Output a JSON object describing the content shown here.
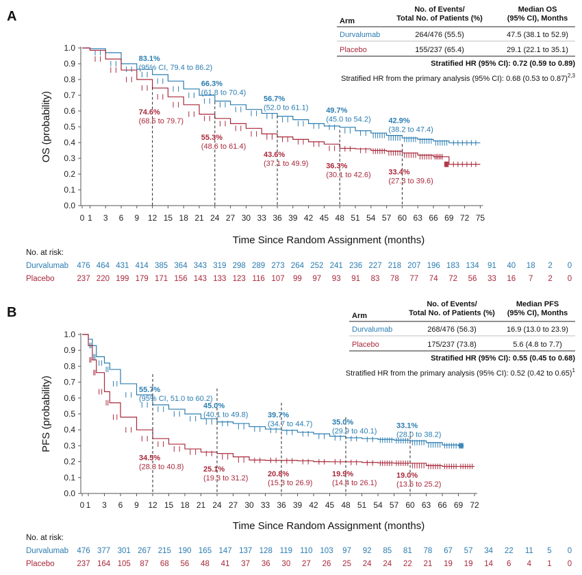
{
  "colors": {
    "durvalumab": "#2a7cb0",
    "placebo": "#a8283a",
    "text": "#111111"
  },
  "chart_data": [
    {
      "type": "line",
      "panel_label": "A",
      "ylabel": "OS (probability)",
      "xlabel": "Time Since Random Assignment (months)",
      "xlim": [
        0,
        75
      ],
      "ylim": [
        0,
        1.0
      ],
      "x_ticks": [
        "0",
        "1",
        "3",
        "6",
        "9",
        "12",
        "15",
        "18",
        "21",
        "24",
        "27",
        "30",
        "33",
        "36",
        "39",
        "42",
        "45",
        "48",
        "51",
        "54",
        "57",
        "60",
        "63",
        "66",
        "69",
        "72",
        "75"
      ],
      "x_tick_values": [
        0,
        1,
        3,
        6,
        9,
        12,
        15,
        18,
        21,
        24,
        27,
        30,
        33,
        36,
        39,
        42,
        45,
        48,
        51,
        54,
        57,
        60,
        63,
        66,
        69,
        72,
        75
      ],
      "y_ticks": [
        "0.0",
        "0.1",
        "0.2",
        "0.3",
        "0.4",
        "0.5",
        "0.6",
        "0.7",
        "0.8",
        "0.9",
        "1.0"
      ],
      "series": [
        {
          "name": "Durvalumab",
          "color": "#2a7cb0",
          "x": [
            0,
            1,
            3,
            6,
            9,
            12,
            15,
            18,
            21,
            24,
            27,
            30,
            33,
            36,
            39,
            42,
            45,
            48,
            51,
            54,
            57,
            60,
            63,
            66,
            69,
            75
          ],
          "values": [
            1.0,
            0.995,
            0.97,
            0.9,
            0.865,
            0.831,
            0.79,
            0.74,
            0.7,
            0.663,
            0.64,
            0.61,
            0.585,
            0.567,
            0.545,
            0.52,
            0.505,
            0.497,
            0.475,
            0.46,
            0.445,
            0.429,
            0.42,
            0.41,
            0.398,
            0.398
          ]
        },
        {
          "name": "Placebo",
          "color": "#a8283a",
          "x": [
            0,
            1,
            3,
            6,
            9,
            12,
            15,
            18,
            21,
            24,
            27,
            30,
            33,
            36,
            39,
            42,
            45,
            48,
            51,
            54,
            57,
            60,
            63,
            66,
            68,
            69,
            75
          ],
          "values": [
            1.0,
            0.985,
            0.93,
            0.86,
            0.8,
            0.746,
            0.69,
            0.64,
            0.58,
            0.553,
            0.52,
            0.49,
            0.455,
            0.436,
            0.42,
            0.405,
            0.39,
            0.363,
            0.36,
            0.35,
            0.345,
            0.334,
            0.32,
            0.31,
            0.31,
            0.262,
            0.262
          ]
        }
      ],
      "annotations": [
        {
          "series": "Durvalumab",
          "month": 12,
          "pct": "83.1%",
          "ci": "(95% CI, 79.4 to 86.2)",
          "anchor_y": 0.84,
          "pos": "above"
        },
        {
          "series": "Durvalumab",
          "month": 24,
          "pct": "66.3%",
          "ci": "(61.8 to 70.4)",
          "anchor_y": 0.68,
          "pos": "above"
        },
        {
          "series": "Durvalumab",
          "month": 36,
          "pct": "56.7%",
          "ci": "(52.0 to 61.1)",
          "anchor_y": 0.585,
          "pos": "above"
        },
        {
          "series": "Durvalumab",
          "month": 48,
          "pct": "49.7%",
          "ci": "(45.0 to 54.2)",
          "anchor_y": 0.51,
          "pos": "above"
        },
        {
          "series": "Durvalumab",
          "month": 60,
          "pct": "42.9%",
          "ci": "(38.2 to 47.4)",
          "anchor_y": 0.445,
          "pos": "above"
        },
        {
          "series": "Placebo",
          "month": 12,
          "pct": "74.6%",
          "ci": "(68.5 to 79.7)",
          "anchor_y": 0.63,
          "pos": "below"
        },
        {
          "series": "Placebo",
          "month": 24,
          "pct": "55.3%",
          "ci": "(48.6 to 61.4)",
          "anchor_y": 0.47,
          "pos": "below"
        },
        {
          "series": "Placebo",
          "month": 36,
          "pct": "43.6%",
          "ci": "(37.1 to 49.9)",
          "anchor_y": 0.36,
          "pos": "below"
        },
        {
          "series": "Placebo",
          "month": 48,
          "pct": "36.3%",
          "ci": "(30.1 to 42.6)",
          "anchor_y": 0.29,
          "pos": "below"
        },
        {
          "series": "Placebo",
          "month": 60,
          "pct": "33.4%",
          "ci": "(27.3 to 39.6)",
          "anchor_y": 0.25,
          "pos": "below"
        }
      ],
      "legend_table": {
        "headers": {
          "arm": "Arm",
          "events_line1": "No. of Events/",
          "events_line2": "Total No. of Patients (%)",
          "median_line1": "Median OS",
          "median_line2": "(95% CI), Months"
        },
        "rows": [
          {
            "arm": "Durvalumab",
            "events": "264/476 (55.5)",
            "median": "47.5 (38.1 to 52.9)"
          },
          {
            "arm": "Placebo",
            "events": "155/237 (65.4)",
            "median": "29.1 (22.1 to 35.1)"
          }
        ],
        "hr_text": "Stratified HR (95% CI): 0.72 (0.59 to 0.89)",
        "primary_text": "Stratified HR from the primary analysis (95% CI): 0.68 (0.53 to 0.87)",
        "primary_sup": "2,3"
      },
      "at_risk": {
        "title": "No. at risk:",
        "rows": [
          {
            "arm": "Durvalumab",
            "values": [
              "476",
              "464",
              "431",
              "414",
              "385",
              "364",
              "343",
              "319",
              "298",
              "289",
              "273",
              "264",
              "252",
              "241",
              "236",
              "227",
              "218",
              "207",
              "196",
              "183",
              "134",
              "91",
              "40",
              "18",
              "2",
              "0"
            ]
          },
          {
            "arm": "Placebo",
            "values": [
              "237",
              "220",
              "199",
              "179",
              "171",
              "156",
              "143",
              "133",
              "123",
              "116",
              "107",
              "99",
              "97",
              "93",
              "91",
              "83",
              "78",
              "77",
              "74",
              "72",
              "56",
              "33",
              "16",
              "7",
              "2",
              "0"
            ]
          }
        ]
      }
    },
    {
      "type": "line",
      "panel_label": "B",
      "ylabel": "PFS (probability)",
      "xlabel": "Time Since Random Assignment (months)",
      "xlim": [
        0,
        72
      ],
      "ylim": [
        0,
        1.0
      ],
      "x_ticks": [
        "0",
        "1",
        "3",
        "6",
        "9",
        "12",
        "15",
        "18",
        "21",
        "24",
        "27",
        "30",
        "33",
        "36",
        "39",
        "42",
        "45",
        "48",
        "51",
        "54",
        "57",
        "60",
        "63",
        "66",
        "69",
        "72"
      ],
      "x_tick_values": [
        0,
        1,
        3,
        6,
        9,
        12,
        15,
        18,
        21,
        24,
        27,
        30,
        33,
        36,
        39,
        42,
        45,
        48,
        51,
        54,
        57,
        60,
        63,
        66,
        69,
        72
      ],
      "y_ticks": [
        "0.0",
        "0.1",
        "0.2",
        "0.3",
        "0.4",
        "0.5",
        "0.6",
        "0.7",
        "0.8",
        "0.9",
        "1.0"
      ],
      "series": [
        {
          "name": "Durvalumab",
          "color": "#2a7cb0",
          "x": [
            0,
            1,
            1.5,
            2,
            3,
            4,
            6,
            9,
            12,
            15,
            18,
            21,
            24,
            27,
            30,
            33,
            36,
            39,
            42,
            45,
            48,
            51,
            54,
            57,
            60,
            63,
            66,
            69,
            70
          ],
          "values": [
            1.0,
            0.97,
            0.93,
            0.86,
            0.82,
            0.78,
            0.69,
            0.62,
            0.557,
            0.53,
            0.5,
            0.47,
            0.45,
            0.44,
            0.42,
            0.405,
            0.397,
            0.385,
            0.375,
            0.36,
            0.35,
            0.345,
            0.34,
            0.335,
            0.331,
            0.32,
            0.305,
            0.3,
            0.3
          ]
        },
        {
          "name": "Placebo",
          "color": "#a8283a",
          "x": [
            0,
            1,
            1.5,
            2,
            3,
            4,
            6,
            9,
            12,
            15,
            18,
            21,
            24,
            27,
            30,
            33,
            36,
            39,
            42,
            45,
            48,
            51,
            54,
            57,
            60,
            63,
            66,
            69,
            72
          ],
          "values": [
            1.0,
            0.93,
            0.84,
            0.76,
            0.64,
            0.57,
            0.48,
            0.4,
            0.345,
            0.31,
            0.28,
            0.26,
            0.251,
            0.23,
            0.21,
            0.208,
            0.208,
            0.205,
            0.2,
            0.199,
            0.199,
            0.195,
            0.192,
            0.19,
            0.19,
            0.175,
            0.17,
            0.17,
            0.17
          ]
        }
      ],
      "annotations": [
        {
          "series": "Durvalumab",
          "month": 12,
          "pct": "55.7%",
          "ci": "(95% CI, 51.0 to 60.2)",
          "anchor_y": 0.56,
          "pos": "above"
        },
        {
          "series": "Durvalumab",
          "month": 24,
          "pct": "45.0%",
          "ci": "(40.1 to 49.8)",
          "anchor_y": 0.46,
          "pos": "above"
        },
        {
          "series": "Durvalumab",
          "month": 36,
          "pct": "39.7%",
          "ci": "(34.7 to 44.7)",
          "anchor_y": 0.4,
          "pos": "above"
        },
        {
          "series": "Durvalumab",
          "month": 48,
          "pct": "35.0%",
          "ci": "(29.9 to 40.1)",
          "anchor_y": 0.355,
          "pos": "above"
        },
        {
          "series": "Durvalumab",
          "month": 60,
          "pct": "33.1%",
          "ci": "(28.0 to 38.2)",
          "anchor_y": 0.335,
          "pos": "above"
        },
        {
          "series": "Placebo",
          "month": 12,
          "pct": "34.5%",
          "ci": "(28.3 to 40.8)",
          "anchor_y": 0.26,
          "pos": "below"
        },
        {
          "series": "Placebo",
          "month": 24,
          "pct": "25.1%",
          "ci": "(19.3 to 31.2)",
          "anchor_y": 0.19,
          "pos": "below"
        },
        {
          "series": "Placebo",
          "month": 36,
          "pct": "20.8%",
          "ci": "(15.3 to 26.9)",
          "anchor_y": 0.16,
          "pos": "below"
        },
        {
          "series": "Placebo",
          "month": 48,
          "pct": "19.9%",
          "ci": "(14.4 to 26.1)",
          "anchor_y": 0.16,
          "pos": "below"
        },
        {
          "series": "Placebo",
          "month": 60,
          "pct": "19.0%",
          "ci": "(13.6 to 25.2)",
          "anchor_y": 0.15,
          "pos": "below"
        }
      ],
      "legend_table": {
        "headers": {
          "arm": "Arm",
          "events_line1": "No. of Events/",
          "events_line2": "Total No. of Patients (%)",
          "median_line1": "Median PFS",
          "median_line2": "(95% CI), Months"
        },
        "rows": [
          {
            "arm": "Durvalumab",
            "events": "268/476 (56.3)",
            "median": "16.9 (13.0 to 23.9)"
          },
          {
            "arm": "Placebo",
            "events": "175/237 (73.8)",
            "median": "5.6 (4.8 to 7.7)"
          }
        ],
        "hr_text": "Stratified HR (95% CI): 0.55 (0.45 to 0.68)",
        "primary_text": "Stratified HR from the primary analysis (95% CI): 0.52 (0.42 to 0.65)",
        "primary_sup": "1"
      },
      "at_risk": {
        "title": "No. at risk:",
        "rows": [
          {
            "arm": "Durvalumab",
            "values": [
              "476",
              "377",
              "301",
              "267",
              "215",
              "190",
              "165",
              "147",
              "137",
              "128",
              "119",
              "110",
              "103",
              "97",
              "92",
              "85",
              "81",
              "78",
              "67",
              "57",
              "34",
              "22",
              "11",
              "5",
              "0"
            ]
          },
          {
            "arm": "Placebo",
            "values": [
              "237",
              "164",
              "105",
              "87",
              "68",
              "56",
              "48",
              "41",
              "37",
              "36",
              "30",
              "27",
              "26",
              "25",
              "24",
              "24",
              "22",
              "21",
              "19",
              "19",
              "14",
              "6",
              "4",
              "1",
              "0"
            ]
          }
        ]
      }
    }
  ]
}
